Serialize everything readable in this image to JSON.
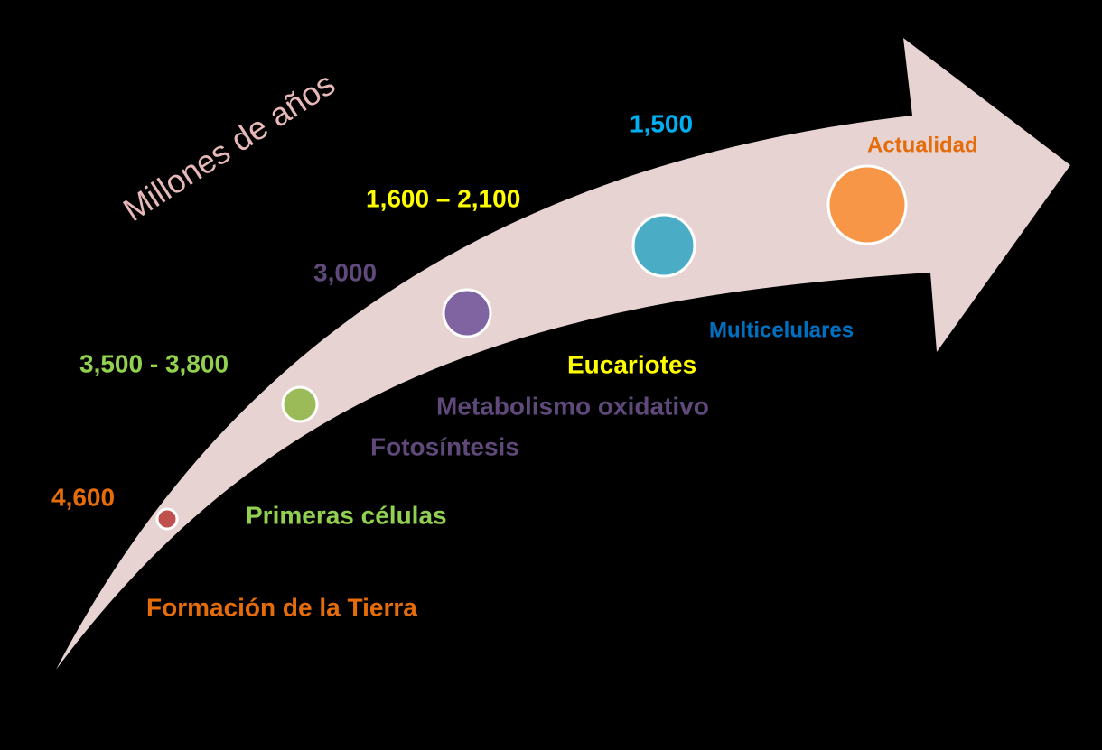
{
  "title": "Millones de años",
  "nodes": [
    {
      "date": "4,600",
      "event": "Formación de la Tierra"
    },
    {
      "date": "3,500 - 3,800",
      "event": "Primeras células"
    },
    {
      "date": "3,000",
      "events": [
        "Fotosíntesis",
        "Metabolismo oxidativo"
      ]
    },
    {
      "date": "1,600 – 2,100",
      "event": "Eucariotes"
    },
    {
      "date": "1,500",
      "event": "Multicelulares"
    },
    {
      "event": "Actualidad"
    }
  ]
}
